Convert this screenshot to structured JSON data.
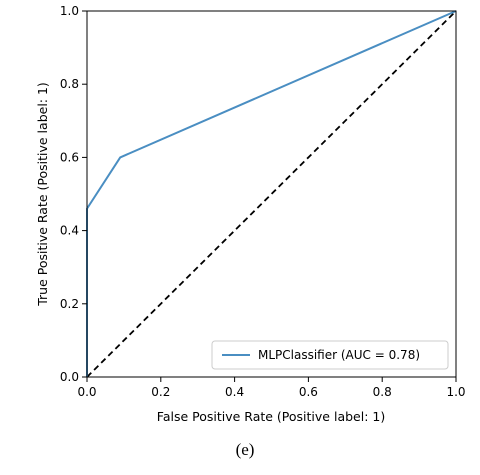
{
  "chart_data": {
    "type": "line",
    "title": "",
    "xlabel": "False Positive Rate (Positive label: 1)",
    "ylabel": "True Positive Rate (Positive label: 1)",
    "xlim": [
      0.0,
      1.0
    ],
    "ylim": [
      0.0,
      1.0
    ],
    "x_ticks": [
      "0.0",
      "0.2",
      "0.4",
      "0.6",
      "0.8",
      "1.0"
    ],
    "y_ticks": [
      "0.0",
      "0.2",
      "0.4",
      "0.6",
      "0.8",
      "1.0"
    ],
    "grid": false,
    "legend_position": "lower-right",
    "series": [
      {
        "name": "MLPClassifier (AUC = 0.78)",
        "color": "#4a8ec2",
        "x": [
          0.0,
          0.0,
          0.09,
          1.0
        ],
        "y": [
          0.0,
          0.46,
          0.6,
          1.0
        ]
      }
    ],
    "reference_line": {
      "x": [
        0.0,
        1.0
      ],
      "y": [
        0.0,
        1.0
      ],
      "style": "dashed",
      "color": "#000000"
    }
  },
  "caption": "(e)"
}
